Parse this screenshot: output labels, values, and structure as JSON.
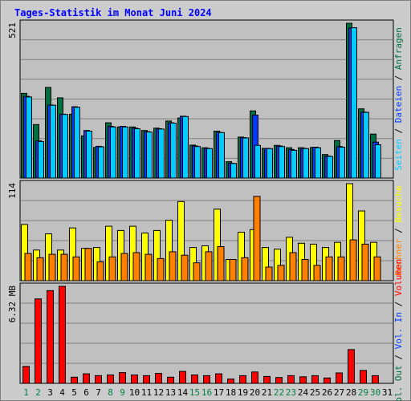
{
  "chart_data": {
    "type": "bar",
    "title": "Tages-Statistik im Monat Juni 2024",
    "categories": [
      "1",
      "2",
      "3",
      "4",
      "5",
      "6",
      "7",
      "8",
      "9",
      "10",
      "11",
      "12",
      "13",
      "14",
      "15",
      "16",
      "17",
      "18",
      "19",
      "20",
      "21",
      "22",
      "23",
      "24",
      "25",
      "26",
      "27",
      "28",
      "29",
      "30",
      "31"
    ],
    "weekend_days": [
      "1",
      "2",
      "8",
      "9",
      "15",
      "16",
      "22",
      "23",
      "29",
      "30"
    ],
    "panels": [
      {
        "name": "pages-files-hits",
        "max_label": "521",
        "ylim": [
          0,
          521
        ],
        "grid": true,
        "series": [
          {
            "name": "Anfragen",
            "color": "#006f3f",
            "values": [
              285,
              180,
              305,
              270,
              215,
              142,
              103,
              186,
              172,
              172,
              160,
              168,
              192,
              202,
              111,
              102,
              158,
              55,
              138,
              226,
              100,
              110,
              102,
              102,
              103,
              79,
              126,
              521,
              233,
              148,
              0
            ]
          },
          {
            "name": "Dateien",
            "color": "#0039ff",
            "values": [
              275,
              125,
              246,
              215,
              240,
              160,
              107,
              174,
              174,
              168,
              156,
              166,
              186,
              208,
              108,
              100,
              154,
              50,
              136,
              212,
              100,
              108,
              96,
              100,
              104,
              74,
              106,
              505,
              222,
              121,
              0
            ]
          },
          {
            "name": "Seiten",
            "color": "#00ccff",
            "values": [
              273,
              123,
              245,
              214,
              238,
              158,
              105,
              172,
              172,
              166,
              155,
              165,
              185,
              207,
              106,
              99,
              153,
              49,
              135,
              110,
              99,
              106,
              93,
              99,
              102,
              73,
              104,
              506,
              221,
              112,
              0
            ]
          }
        ],
        "legend": [
          "Anfragen",
          "Dateien",
          "Seiten"
        ]
      },
      {
        "name": "visits-sites",
        "max_label": "114",
        "ylim": [
          0,
          114
        ],
        "grid": true,
        "series": [
          {
            "name": "Besuche",
            "color": "#ffff00",
            "values": [
              66,
              36,
              55,
              36,
              62,
              38,
              39,
              64,
              59,
              64,
              56,
              59,
              71,
              93,
              39,
              41,
              84,
              25,
              57,
              60,
              39,
              37,
              51,
              44,
              43,
              39,
              45,
              114,
              82,
              45,
              0
            ]
          },
          {
            "name": "Rechner",
            "color": "#ff8000",
            "values": [
              32,
              27,
              31,
              31,
              28,
              38,
              22,
              28,
              32,
              33,
              31,
              26,
              34,
              30,
              21,
              34,
              40,
              25,
              27,
              99,
              16,
              18,
              33,
              25,
              18,
              28,
              28,
              48,
              43,
              28,
              0
            ]
          }
        ],
        "legend": [
          "Besuche",
          "Rechner"
        ]
      },
      {
        "name": "volume",
        "max_label": "6.32 MB",
        "ylim": [
          0,
          6.32
        ],
        "grid": true,
        "series": [
          {
            "name": "Volumen",
            "color": "#ff0000",
            "values": [
              1.1,
              5.5,
              6.04,
              6.32,
              0.4,
              0.62,
              0.5,
              0.55,
              0.7,
              0.55,
              0.5,
              0.65,
              0.4,
              0.78,
              0.55,
              0.5,
              0.62,
              0.28,
              0.5,
              0.74,
              0.45,
              0.38,
              0.5,
              0.43,
              0.5,
              0.35,
              0.68,
              2.2,
              0.84,
              0.5,
              0
            ]
          }
        ],
        "legend": [
          "Volumen",
          "Vol. In",
          "Vol. Out"
        ]
      }
    ],
    "legend_separator": "/",
    "legend_colors": {
      "Anfragen": "#006f3f",
      "Dateien": "#0039ff",
      "Seiten": "#00ccff",
      "Besuche": "#ffff00",
      "Rechner": "#ff8000",
      "Volumen": "#ff0000",
      "Vol. In": "#0039ff",
      "Vol. Out": "#006f3f"
    },
    "colors": {
      "background": "#cccccc",
      "plot_background": "#c0c0c0",
      "title": "#0000ff",
      "weekday_label": "#000000",
      "weekend_label": "#008040"
    }
  }
}
